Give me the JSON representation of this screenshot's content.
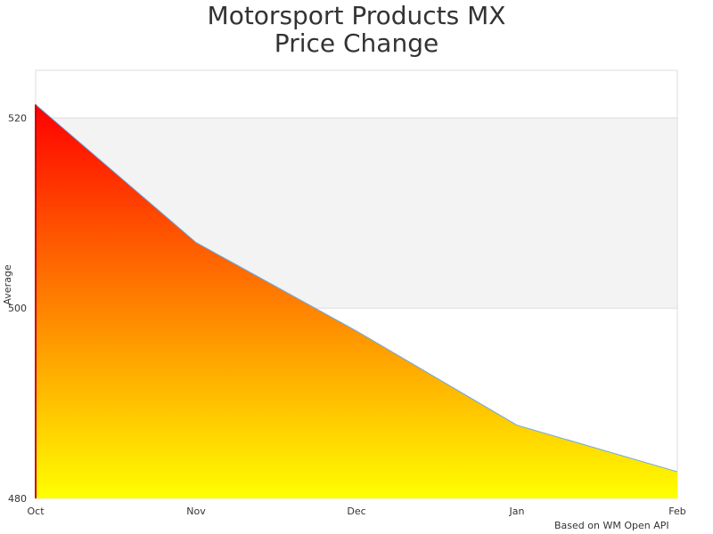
{
  "chart_data": {
    "type": "area",
    "title_line1": "Motorsport Products MX",
    "title_line2": "Price Change",
    "ylabel": "Average",
    "xlabel": "",
    "categories": [
      "Oct",
      "Nov",
      "Dec",
      "Jan",
      "Feb"
    ],
    "values": [
      521.4,
      506.9,
      497.6,
      487.7,
      482.8
    ],
    "ylim": [
      480,
      525
    ],
    "yticks": [
      480,
      500,
      520
    ],
    "grid": "alternating horizontal bands",
    "legend": "none",
    "colors": {
      "fill_top": "#ff0000",
      "fill_bottom": "#ffff00",
      "line": "#6aa8e8",
      "band": "#f3f3f3"
    },
    "credit": "Based on WM Open API"
  }
}
